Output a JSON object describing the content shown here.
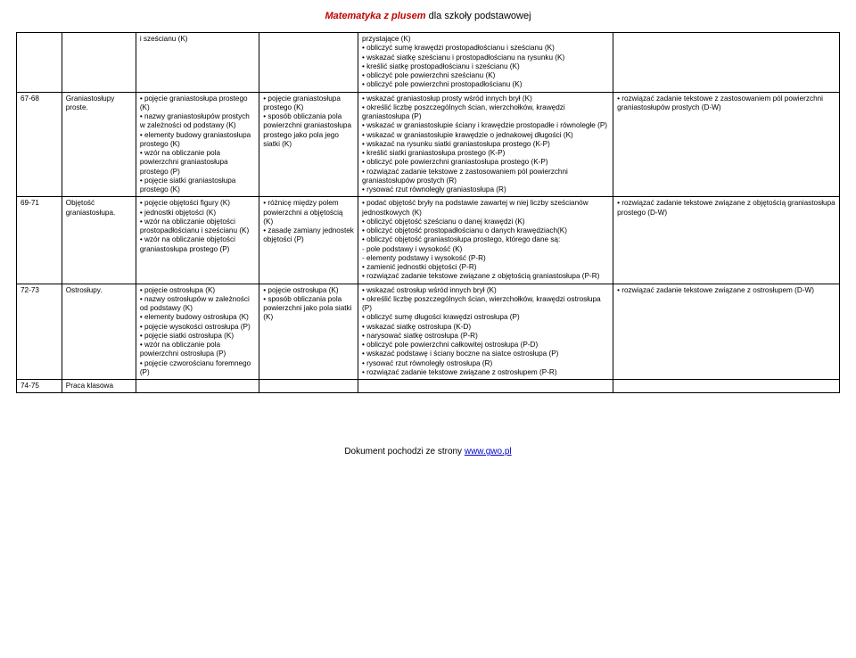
{
  "header": {
    "brand": "Matematyka z plusem",
    "suffix": " dla szkoły podstawowej"
  },
  "footer": {
    "prefix": "Dokument pochodzi ze strony ",
    "link": "www.gwo.pl"
  },
  "colors": {
    "brand": "#c00000",
    "link": "#0000cc",
    "border": "#000000",
    "bg": "#ffffff"
  },
  "rows": [
    {
      "c1": "",
      "c2": "",
      "c3": "i sześcianu (K)",
      "c4": "",
      "c5": "przystające (K)\n• obliczyć sumę krawędzi prostopadłościanu i sześcianu (K)\n• wskazać siatkę sześcianu i prostopadłościanu na rysunku (K)\n• kreślić siatkę prostopadłościanu i sześcianu (K)\n• obliczyć pole powierzchni sześcianu (K)\n• obliczyć pole powierzchni prostopadłościanu (K)",
      "c6": ""
    },
    {
      "c1": "67-68",
      "c2": "Graniastosłupy proste.",
      "c3": "• pojęcie graniastosłupa prostego (K)\n• nazwy graniastosłupów prostych w zależności od podstawy (K)\n• elementy budowy graniastosłupa prostego (K)\n• wzór na obliczanie pola powierzchni graniastosłupa prostego (P)\n• pojęcie siatki graniastosłupa prostego (K)",
      "c4": "• pojęcie graniastosłupa prostego (K)\n• sposób obliczania pola powierzchni graniastosłupa prostego jako pola jego siatki (K)",
      "c5": "• wskazać graniastosłup prosty wśród innych brył (K)\n• określić liczbę poszczególnych ścian, wierzchołków, krawędzi graniastosłupa (P)\n• wskazać w graniastosłupie ściany i krawędzie prostopadłe i równoległe (P)\n• wskazać w graniastosłupie krawędzie o jednakowej długości (K)\n• wskazać na rysunku siatki graniastosłupa prostego (K-P)\n• kreślić siatki graniastosłupa prostego (K-P)\n• obliczyć pole powierzchni graniastosłupa prostego (K-P)\n• rozwiązać zadanie tekstowe z zastosowaniem pól powierzchni graniastosłupów prostych (R)\n• rysować rzut równoległy graniastosłupa (R)",
      "c6": "• rozwiązać zadanie tekstowe z zastosowaniem pól powierzchni graniastosłupów prostych (D-W)"
    },
    {
      "c1": "69-71",
      "c2": "Objętość graniastosłupa.",
      "c3": "• pojęcie objętości figury (K)\n• jednostki objętości (K)\n• wzór na obliczanie objętości prostopadłościanu i sześcianu (K)\n• wzór na obliczanie objętości graniastosłupa prostego (P)",
      "c4": "• różnicę między polem powierzchni a objętością (K)\n• zasadę zamiany jednostek objętości (P)",
      "c5": "• podać objętość bryły na podstawie zawartej w niej liczby sześcianów jednostkowych (K)\n• obliczyć objętość sześcianu o danej krawędzi (K)\n• obliczyć objętość prostopadłościanu o danych krawędziach(K)\n• obliczyć objętość graniastosłupa prostego, którego dane są:\n- pole podstawy i wysokość (K)\n- elementy podstawy i wysokość (P-R)\n• zamienić jednostki objętości (P-R)\n• rozwiązać zadanie tekstowe związane z objętością graniastosłupa (P-R)",
      "c6": "• rozwiązać zadanie tekstowe związane z objętością graniastosłupa prostego (D-W)"
    },
    {
      "c1": "72-73",
      "c2": "Ostrosłupy.",
      "c3": "• pojęcie ostrosłupa (K)\n• nazwy ostrosłupów w zależności od podstawy (K)\n• elementy budowy ostrosłupa (K)\n• pojęcie wysokości ostrosłupa (P)\n• pojęcie siatki ostrosłupa (K)\n• wzór na obliczanie pola powierzchni ostrosłupa (P)\n• pojęcie czworościanu foremnego (P)",
      "c4": "• pojęcie ostrosłupa (K)\n• sposób obliczania pola powierzchni jako pola siatki (K)",
      "c5": "• wskazać ostrosłup wśród innych brył (K)\n• określić liczbę poszczególnych ścian, wierzchołków, krawędzi ostrosłupa (P)\n• obliczyć sumę długości krawędzi ostrosłupa (P)\n• wskazać siatkę ostrosłupa (K-D)\n• narysować siatkę ostrosłupa (P-R)\n• obliczyć pole powierzchni całkowitej ostrosłupa (P-D)\n• wskazać podstawę i ściany boczne na siatce ostrosłupa (P)\n• rysować rzut równoległy ostrosłupa (R)\n• rozwiązać zadanie tekstowe związane z ostrosłupem (P-R)",
      "c6": "• rozwiązać zadanie tekstowe związane z ostrosłupem (D-W)"
    },
    {
      "c1": "74-75",
      "c2": "Praca klasowa",
      "c3": "",
      "c4": "",
      "c5": "",
      "c6": ""
    }
  ]
}
